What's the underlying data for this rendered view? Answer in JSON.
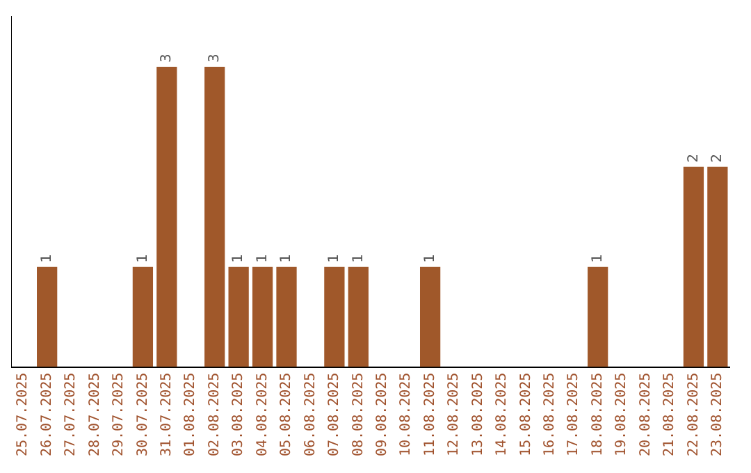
{
  "chart_data": {
    "type": "bar",
    "categories": [
      "25.07.2025",
      "26.07.2025",
      "27.07.2025",
      "28.07.2025",
      "29.07.2025",
      "30.07.2025",
      "31.07.2025",
      "01.08.2025",
      "02.08.2025",
      "03.08.2025",
      "04.08.2025",
      "05.08.2025",
      "06.08.2025",
      "07.08.2025",
      "08.08.2025",
      "09.08.2025",
      "10.08.2025",
      "11.08.2025",
      "12.08.2025",
      "13.08.2025",
      "14.08.2025",
      "15.08.2025",
      "16.08.2025",
      "17.08.2025",
      "18.08.2025",
      "19.08.2025",
      "20.08.2025",
      "21.08.2025",
      "22.08.2025",
      "23.08.2025"
    ],
    "values": [
      0,
      1,
      0,
      0,
      0,
      1,
      3,
      0,
      3,
      1,
      1,
      1,
      0,
      1,
      1,
      0,
      0,
      1,
      0,
      0,
      0,
      0,
      0,
      0,
      1,
      0,
      0,
      0,
      2,
      2
    ],
    "value_labels": [
      null,
      "1",
      null,
      null,
      null,
      "1",
      "3",
      null,
      "3",
      "1",
      "1",
      "1",
      null,
      "1",
      "1",
      null,
      null,
      "1",
      null,
      null,
      null,
      null,
      null,
      null,
      "1",
      null,
      null,
      null,
      "2",
      "2"
    ],
    "color": "#a0582a",
    "tick_labels": "x",
    "grid": false,
    "legend": false
  }
}
